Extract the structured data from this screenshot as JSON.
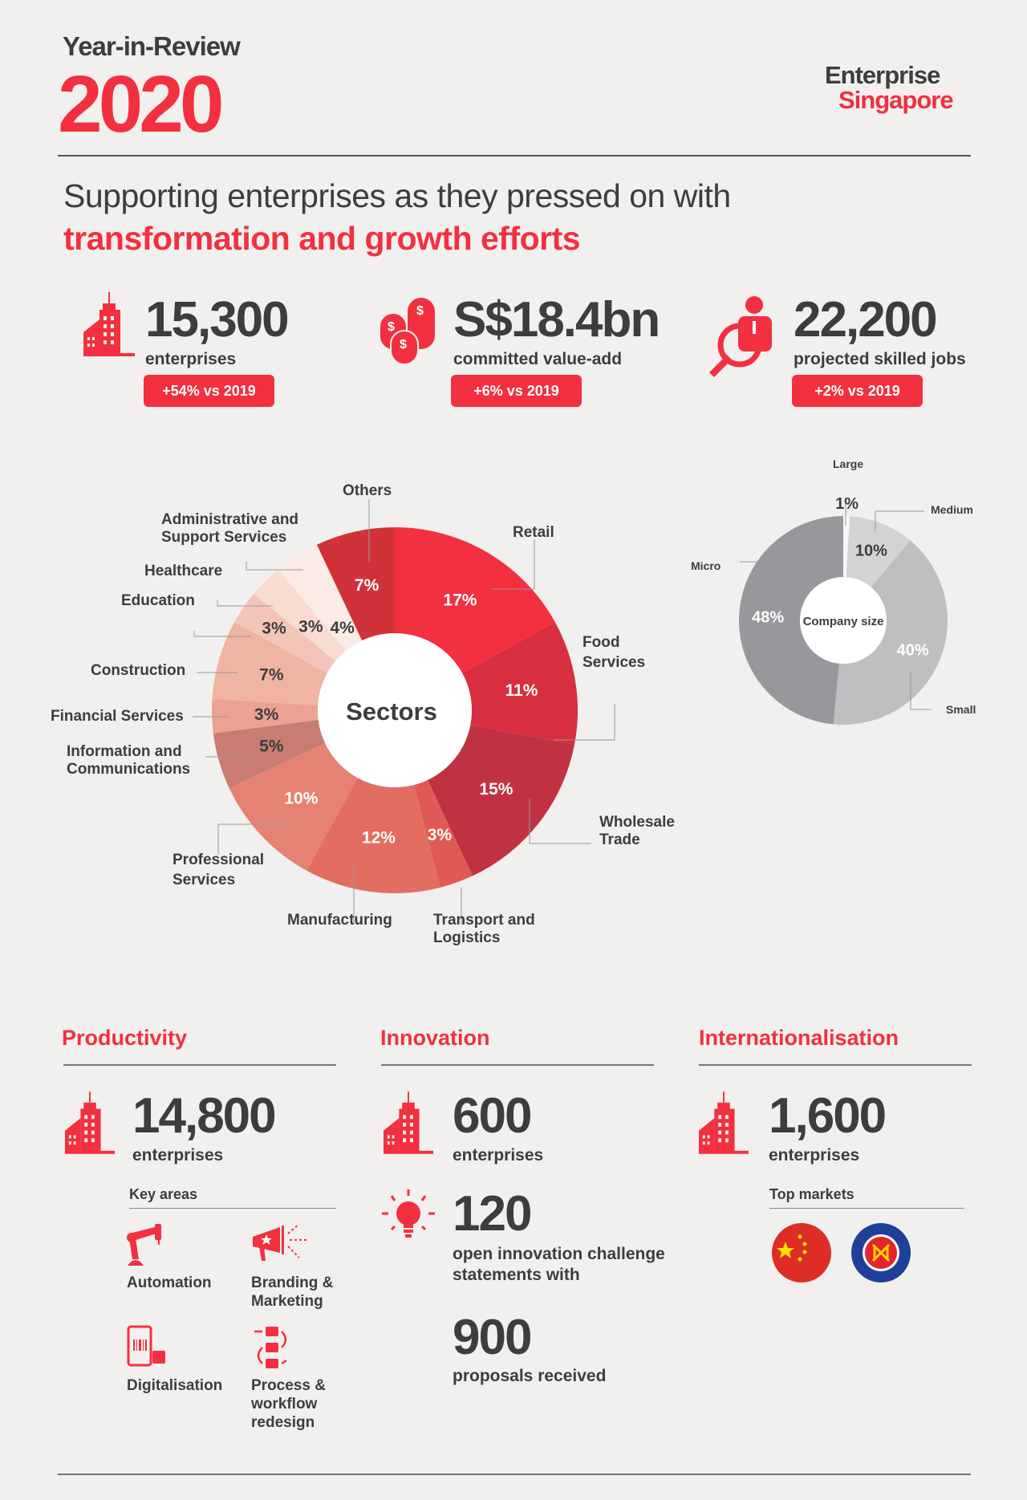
{
  "header": {
    "kicker": "Year-in-Review",
    "year": "2020",
    "logo": {
      "line1": "Enterprise",
      "line2": "Singapore"
    }
  },
  "headline": {
    "line1": "Supporting enterprises as they pressed on with",
    "line2": "transformation and growth efforts"
  },
  "stats": [
    {
      "icon": "building-icon",
      "value": "15,300",
      "label": "enterprises",
      "badge": "+54% vs 2019"
    },
    {
      "icon": "coins-icon",
      "value": "S$18.4bn",
      "label": "committed value-add",
      "badge": "+6% vs 2019"
    },
    {
      "icon": "job-search-icon",
      "value": "22,200",
      "label": "projected skilled jobs",
      "badge": "+2% vs 2019"
    }
  ],
  "colors": {
    "accent": "#f2303f",
    "text": "#3d3d3d",
    "background": "#f1f0ee"
  },
  "chart_data": [
    {
      "type": "pie",
      "title": "Sectors",
      "unit": "%",
      "categories": [
        "Retail",
        "Food Services",
        "Wholesale Trade",
        "Transport and Logistics",
        "Manufacturing",
        "Professional Services",
        "Information and Communications",
        "Financial Services",
        "Construction",
        "Education",
        "Healthcare",
        "Administrative and Support Services",
        "Others"
      ],
      "values": [
        17,
        11,
        15,
        3,
        12,
        10,
        5,
        3,
        7,
        3,
        3,
        4,
        7
      ],
      "labels": [
        "17%",
        "11%",
        "15%",
        "3%",
        "12%",
        "10%",
        "5%",
        "3%",
        "7%",
        "3%",
        "3%",
        "4%",
        "7%"
      ],
      "colors": [
        "#f2303f",
        "#d72e40",
        "#c03242",
        "#e05a55",
        "#e36d61",
        "#e58272",
        "#c97d72",
        "#eba293",
        "#f0b4a3",
        "#f3c5b8",
        "#f8dcd2",
        "#fbebe5",
        "#cf3339"
      ]
    },
    {
      "type": "pie",
      "title": "Company size",
      "unit": "%",
      "categories": [
        "Large",
        "Medium",
        "Small",
        "Micro"
      ],
      "values": [
        1,
        10,
        40,
        48
      ],
      "labels": [
        "1%",
        "10%",
        "40%",
        "48%"
      ],
      "colors": [
        "#f7f7f7",
        "#d3d3d5",
        "#bebfc1",
        "#97989b"
      ]
    }
  ],
  "sections": {
    "productivity": {
      "title": "Productivity",
      "value": "14,800",
      "label": "enterprises",
      "key_areas_title": "Key areas",
      "key_areas": [
        {
          "icon": "robot-arm-icon",
          "label": "Automation"
        },
        {
          "icon": "megaphone-icon",
          "label": "Branding & Marketing"
        },
        {
          "icon": "mobile-barcode-icon",
          "label": "Digitalisation"
        },
        {
          "icon": "workflow-icon",
          "label": "Process & workflow redesign"
        }
      ]
    },
    "innovation": {
      "title": "Innovation",
      "value": "600",
      "label": "enterprises",
      "challenges_value": "120",
      "challenges_label": "open innovation challenge statements with",
      "proposals_value": "900",
      "proposals_label": "proposals received"
    },
    "internationalisation": {
      "title": "Internationalisation",
      "value": "1,600",
      "label": "enterprises",
      "top_markets_title": "Top markets",
      "markets": [
        "china-flag-icon",
        "asean-flag-icon"
      ]
    }
  }
}
